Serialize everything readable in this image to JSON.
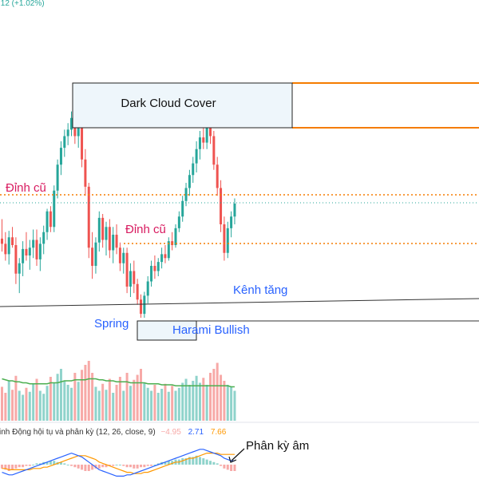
{
  "header": {
    "price_change": ".12 (+1.02%)"
  },
  "annotations": {
    "dark_cloud": "Dark Cloud Cover",
    "dinh_cu_left": "Đỉnh cũ",
    "dinh_cu_mid": "Đỉnh cũ",
    "kenh_tang": "Kênh tăng",
    "spring": "Spring",
    "harami": "Harami Bullish",
    "phan_ky": "Phân kỳ âm"
  },
  "macd_legend": {
    "label": "inh Động hội tụ và phân kỳ (12, 26, close, 9)",
    "hist": "−4.95",
    "macd": "2.71",
    "signal": "7.66"
  },
  "colors": {
    "up": "#26a69a",
    "down": "#ef5350",
    "vol_up": "#8fd3cb",
    "vol_down": "#f7a9a7",
    "vol_ma": "#4caf50",
    "macd_line": "#2962ff",
    "signal_line": "#ff9800",
    "orange_zone": "#f57c00",
    "dotted_level": "#f57c00",
    "annotation_red": "#d81b60",
    "annotation_blue": "#2962ff",
    "box_fill": "#eef6fb"
  },
  "chart_data": {
    "type": "candlestick",
    "candles": [
      {
        "o": 257,
        "h": 272,
        "l": 247,
        "c": 253
      },
      {
        "o": 253,
        "h": 262,
        "l": 240,
        "c": 245
      },
      {
        "o": 245,
        "h": 263,
        "l": 237,
        "c": 258
      },
      {
        "o": 258,
        "h": 266,
        "l": 250,
        "c": 252
      },
      {
        "o": 252,
        "h": 258,
        "l": 222,
        "c": 230
      },
      {
        "o": 230,
        "h": 242,
        "l": 215,
        "c": 238
      },
      {
        "o": 238,
        "h": 255,
        "l": 228,
        "c": 249
      },
      {
        "o": 249,
        "h": 262,
        "l": 240,
        "c": 244
      },
      {
        "o": 244,
        "h": 256,
        "l": 233,
        "c": 250
      },
      {
        "o": 250,
        "h": 264,
        "l": 242,
        "c": 256
      },
      {
        "o": 256,
        "h": 264,
        "l": 236,
        "c": 241
      },
      {
        "o": 241,
        "h": 258,
        "l": 232,
        "c": 253
      },
      {
        "o": 253,
        "h": 267,
        "l": 245,
        "c": 262
      },
      {
        "o": 262,
        "h": 280,
        "l": 256,
        "c": 278
      },
      {
        "o": 278,
        "h": 282,
        "l": 262,
        "c": 266
      },
      {
        "o": 266,
        "h": 298,
        "l": 262,
        "c": 294
      },
      {
        "o": 294,
        "h": 318,
        "l": 288,
        "c": 314
      },
      {
        "o": 314,
        "h": 332,
        "l": 306,
        "c": 327
      },
      {
        "o": 327,
        "h": 341,
        "l": 320,
        "c": 336
      },
      {
        "o": 336,
        "h": 346,
        "l": 329,
        "c": 341
      },
      {
        "o": 341,
        "h": 355,
        "l": 336,
        "c": 350
      },
      {
        "o": 350,
        "h": 356,
        "l": 330,
        "c": 336
      },
      {
        "o": 336,
        "h": 352,
        "l": 327,
        "c": 347
      },
      {
        "o": 347,
        "h": 348,
        "l": 312,
        "c": 318
      },
      {
        "o": 318,
        "h": 326,
        "l": 290,
        "c": 297
      },
      {
        "o": 297,
        "h": 300,
        "l": 242,
        "c": 250
      },
      {
        "o": 250,
        "h": 262,
        "l": 226,
        "c": 236
      },
      {
        "o": 236,
        "h": 258,
        "l": 230,
        "c": 254
      },
      {
        "o": 254,
        "h": 278,
        "l": 247,
        "c": 273
      },
      {
        "o": 273,
        "h": 276,
        "l": 250,
        "c": 256
      },
      {
        "o": 256,
        "h": 270,
        "l": 244,
        "c": 266
      },
      {
        "o": 266,
        "h": 272,
        "l": 242,
        "c": 248
      },
      {
        "o": 248,
        "h": 266,
        "l": 238,
        "c": 260
      },
      {
        "o": 260,
        "h": 268,
        "l": 245,
        "c": 250
      },
      {
        "o": 250,
        "h": 254,
        "l": 232,
        "c": 238
      },
      {
        "o": 238,
        "h": 250,
        "l": 230,
        "c": 246
      },
      {
        "o": 246,
        "h": 250,
        "l": 215,
        "c": 220
      },
      {
        "o": 220,
        "h": 238,
        "l": 212,
        "c": 232
      },
      {
        "o": 232,
        "h": 240,
        "l": 215,
        "c": 222
      },
      {
        "o": 222,
        "h": 226,
        "l": 206,
        "c": 210
      },
      {
        "o": 210,
        "h": 214,
        "l": 196,
        "c": 199
      },
      {
        "o": 199,
        "h": 216,
        "l": 196,
        "c": 213
      },
      {
        "o": 213,
        "h": 228,
        "l": 207,
        "c": 224
      },
      {
        "o": 224,
        "h": 240,
        "l": 220,
        "c": 236
      },
      {
        "o": 236,
        "h": 244,
        "l": 226,
        "c": 232
      },
      {
        "o": 232,
        "h": 242,
        "l": 228,
        "c": 239
      },
      {
        "o": 239,
        "h": 250,
        "l": 234,
        "c": 245
      },
      {
        "o": 245,
        "h": 252,
        "l": 238,
        "c": 242
      },
      {
        "o": 242,
        "h": 258,
        "l": 240,
        "c": 255
      },
      {
        "o": 255,
        "h": 262,
        "l": 248,
        "c": 252
      },
      {
        "o": 252,
        "h": 268,
        "l": 250,
        "c": 265
      },
      {
        "o": 265,
        "h": 278,
        "l": 262,
        "c": 274
      },
      {
        "o": 274,
        "h": 290,
        "l": 270,
        "c": 286
      },
      {
        "o": 286,
        "h": 300,
        "l": 282,
        "c": 296
      },
      {
        "o": 296,
        "h": 310,
        "l": 290,
        "c": 306
      },
      {
        "o": 306,
        "h": 320,
        "l": 300,
        "c": 315
      },
      {
        "o": 315,
        "h": 332,
        "l": 308,
        "c": 326
      },
      {
        "o": 326,
        "h": 340,
        "l": 318,
        "c": 335
      },
      {
        "o": 335,
        "h": 346,
        "l": 326,
        "c": 331
      },
      {
        "o": 331,
        "h": 356,
        "l": 326,
        "c": 351
      },
      {
        "o": 351,
        "h": 355,
        "l": 330,
        "c": 336
      },
      {
        "o": 336,
        "h": 340,
        "l": 310,
        "c": 314
      },
      {
        "o": 314,
        "h": 320,
        "l": 290,
        "c": 296
      },
      {
        "o": 296,
        "h": 302,
        "l": 262,
        "c": 268
      },
      {
        "o": 268,
        "h": 274,
        "l": 240,
        "c": 246
      },
      {
        "o": 246,
        "h": 270,
        "l": 242,
        "c": 265
      },
      {
        "o": 265,
        "h": 278,
        "l": 258,
        "c": 274
      },
      {
        "o": 274,
        "h": 288,
        "l": 268,
        "c": 284
      }
    ],
    "volume": [
      34,
      28,
      40,
      31,
      45,
      30,
      26,
      33,
      29,
      37,
      42,
      30,
      27,
      35,
      44,
      38,
      47,
      52,
      40,
      36,
      33,
      48,
      39,
      51,
      56,
      60,
      48,
      34,
      30,
      37,
      31,
      42,
      28,
      36,
      44,
      30,
      48,
      35,
      41,
      46,
      52,
      38,
      33,
      30,
      36,
      28,
      32,
      37,
      29,
      35,
      30,
      33,
      38,
      42,
      36,
      40,
      45,
      38,
      43,
      36,
      48,
      52,
      58,
      46,
      40,
      36,
      34,
      30
    ],
    "volume_ma": [
      42,
      41,
      40,
      40,
      39,
      39,
      38,
      38,
      37,
      37,
      37,
      37,
      37,
      37,
      38,
      38,
      38,
      39,
      40,
      40,
      40,
      41,
      41,
      41,
      41,
      42,
      42,
      42,
      41,
      41,
      40,
      40,
      40,
      39,
      39,
      39,
      39,
      38,
      38,
      38,
      38,
      38,
      37,
      37,
      37,
      37,
      36,
      36,
      36,
      36,
      35,
      35,
      35,
      35,
      35,
      35,
      35,
      35,
      35,
      35,
      35,
      35,
      35,
      35,
      35,
      35,
      34,
      34
    ],
    "macd_hist": [
      -3,
      -4,
      -5,
      -4,
      -3,
      -2,
      -2,
      -1,
      -1,
      0,
      1,
      1,
      2,
      2,
      3,
      3,
      2,
      2,
      1,
      0,
      -1,
      -2,
      -3,
      -4,
      -5,
      -5,
      -4,
      -3,
      -3,
      -2,
      -2,
      -1,
      -1,
      0,
      0,
      -1,
      -2,
      -2,
      -3,
      -3,
      -2,
      -2,
      -1,
      -1,
      0,
      1,
      2,
      2,
      3,
      3,
      4,
      4,
      5,
      5,
      6,
      6,
      7,
      6,
      5,
      4,
      3,
      2,
      1,
      -1,
      -3,
      -4,
      -5,
      -5
    ],
    "macd_line": [
      -6,
      -7,
      -8,
      -8,
      -7,
      -6,
      -5,
      -4,
      -3,
      -2,
      -1,
      0,
      1,
      2,
      3,
      4,
      5,
      6,
      7,
      8,
      9,
      8,
      7,
      6,
      4,
      2,
      0,
      -2,
      -4,
      -5,
      -6,
      -7,
      -8,
      -9,
      -9,
      -9,
      -8,
      -8,
      -7,
      -6,
      -5,
      -4,
      -3,
      -2,
      -1,
      0,
      1,
      2,
      3,
      4,
      5,
      6,
      7,
      8,
      9,
      10,
      11,
      12,
      12,
      11,
      10,
      9,
      8,
      7,
      5,
      4,
      3,
      3
    ],
    "signal_line": [
      -3,
      -3,
      -4,
      -4,
      -4,
      -4,
      -4,
      -4,
      -4,
      -3,
      -3,
      -3,
      -2,
      -2,
      -1,
      0,
      1,
      2,
      3,
      4,
      5,
      6,
      7,
      7,
      7,
      6,
      5,
      4,
      2,
      1,
      0,
      -1,
      -2,
      -3,
      -4,
      -5,
      -6,
      -6,
      -7,
      -7,
      -7,
      -6,
      -6,
      -5,
      -4,
      -3,
      -2,
      -1,
      0,
      1,
      2,
      2,
      3,
      4,
      5,
      5,
      6,
      7,
      8,
      9,
      9,
      9,
      9,
      8,
      8,
      8,
      8,
      8
    ]
  }
}
